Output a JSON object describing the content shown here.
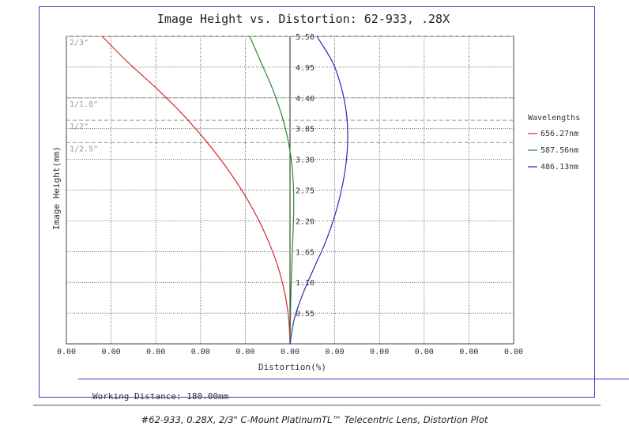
{
  "caption": "#62-933, 0.28X, 2/3\" C-Mount PlatinumTL™ Telecentric Lens, Distortion Plot",
  "working_distance": "Working Distance: 180.00mm",
  "chart_data": {
    "type": "line",
    "title": "Image Height vs. Distortion: 62-933, .28X",
    "xlabel": "Distortion(%)",
    "ylabel": "Image Height(mm)",
    "x_tick_labels": [
      "0.00",
      "0.00",
      "0.00",
      "0.00",
      "0.00",
      "0.00",
      "0.00",
      "0.00",
      "0.00",
      "0.00",
      "0.00"
    ],
    "x_ticks": [
      -0.05,
      -0.04,
      -0.03,
      -0.02,
      -0.01,
      0.0,
      0.01,
      0.02,
      0.03,
      0.04,
      0.05
    ],
    "xlim": [
      -0.05,
      0.05
    ],
    "ylim": [
      0,
      5.5
    ],
    "y_ticks": [
      0.55,
      1.1,
      1.65,
      2.2,
      2.75,
      3.3,
      3.85,
      4.4,
      4.95,
      5.5
    ],
    "y_tick_labels": [
      "0.55",
      "1.10",
      "1.65",
      "2.20",
      "2.75",
      "3.30",
      "3.85",
      "4.40",
      "4.95",
      "5.50"
    ],
    "grid": true,
    "sensor_markers": [
      {
        "label": "2/3\"",
        "y": 5.5
      },
      {
        "label": "1/1.8\"",
        "y": 4.4
      },
      {
        "label": "1/2\"",
        "y": 4.0
      },
      {
        "label": "1/2.5\"",
        "y": 3.6
      }
    ],
    "legend": {
      "title": "Wavelengths",
      "position": "right"
    },
    "series": [
      {
        "name": "656.27nm",
        "color": "#d42a2a",
        "x": [
          0.0,
          -0.0003,
          -0.0012,
          -0.0027,
          -0.0048,
          -0.0075,
          -0.0108,
          -0.0147,
          -0.0192,
          -0.0243,
          -0.03,
          -0.0363,
          -0.042
        ],
        "y": [
          0.0,
          0.46,
          0.92,
          1.38,
          1.83,
          2.29,
          2.75,
          3.21,
          3.67,
          4.13,
          4.58,
          5.04,
          5.5
        ]
      },
      {
        "name": "587.56nm",
        "color": "#2a8a2a",
        "x": [
          0.0,
          0.0001,
          0.0002,
          0.0004,
          0.0006,
          0.0008,
          0.0008,
          0.0004,
          -0.0005,
          -0.002,
          -0.004,
          -0.0065,
          -0.009
        ],
        "y": [
          0.0,
          0.46,
          0.92,
          1.38,
          1.83,
          2.29,
          2.75,
          3.21,
          3.67,
          4.13,
          4.58,
          5.04,
          5.5
        ]
      },
      {
        "name": "486.13nm",
        "color": "#2a2ab8",
        "x": [
          0.0,
          0.001,
          0.003,
          0.0055,
          0.008,
          0.01,
          0.0115,
          0.0125,
          0.0129,
          0.0126,
          0.0115,
          0.0095,
          0.006
        ],
        "y": [
          0.0,
          0.46,
          0.92,
          1.38,
          1.83,
          2.29,
          2.75,
          3.21,
          3.67,
          4.13,
          4.58,
          5.04,
          5.5
        ]
      }
    ]
  }
}
